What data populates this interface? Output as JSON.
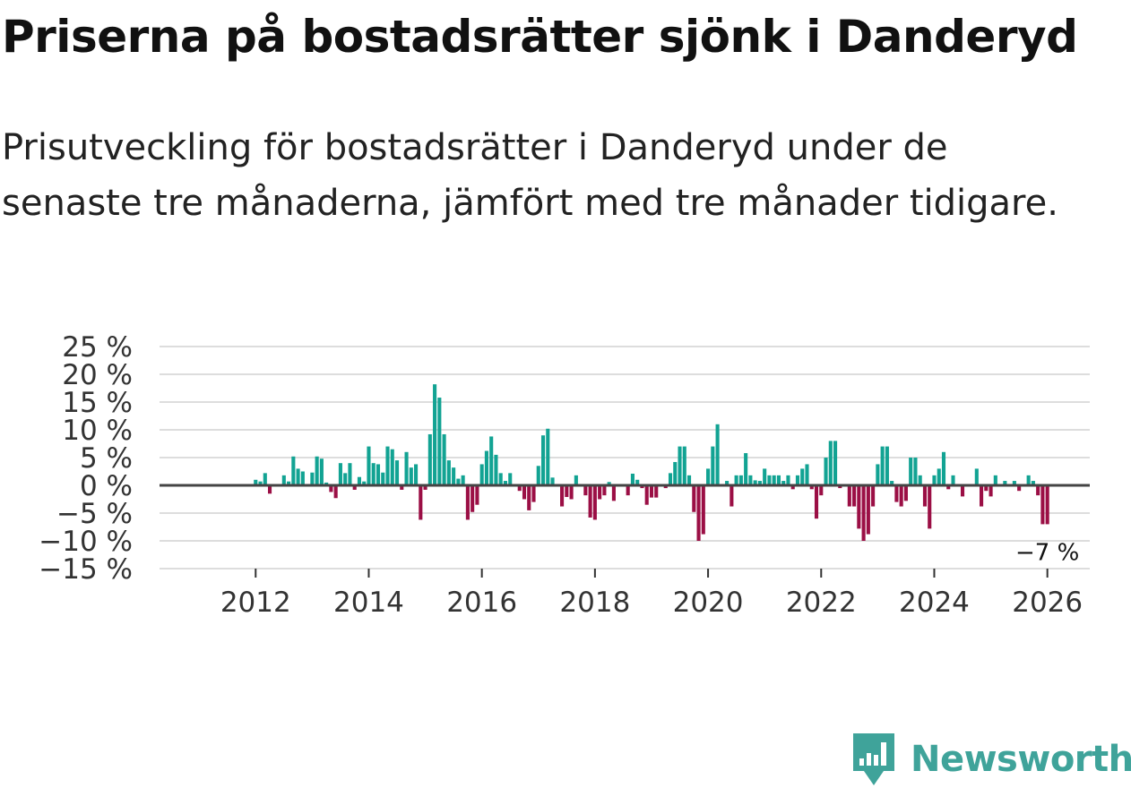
{
  "title": "Priserna på bostadsrätter sjönk i Danderyd",
  "subtitle": "Prisutveckling för bostadsrätter i Danderyd under de senaste tre månaderna, jämfört med tre månader tidigare.",
  "logo": {
    "text": "Newsworthy",
    "icon": "newsworthy-logo-icon",
    "color": "#3fa39a"
  },
  "colors": {
    "positive": "#12a393",
    "negative": "#9b0f45",
    "grid": "#dddddd",
    "zero": "#444444"
  },
  "chart_data": {
    "type": "bar",
    "title": "Priserna på bostadsrätter sjönk i Danderyd",
    "ylabel": "",
    "xlabel": "",
    "ylim": [
      -15,
      25
    ],
    "xlim": [
      2010.3,
      2026.75
    ],
    "y_ticks": [
      25,
      20,
      15,
      10,
      5,
      0,
      -5,
      -10,
      -15
    ],
    "y_tick_labels": [
      "25 %",
      "20 %",
      "15 %",
      "10 %",
      "5 %",
      "0 %",
      "−5 %",
      "−10 %",
      "−15 %"
    ],
    "x_ticks": [
      2012,
      2014,
      2016,
      2018,
      2020,
      2022,
      2024,
      2026
    ],
    "x_tick_labels": [
      "2012",
      "2014",
      "2016",
      "2018",
      "2020",
      "2022",
      "2024",
      "2026"
    ],
    "start": "2011-01",
    "frequency": "monthly",
    "values": [
      0,
      0,
      0,
      0,
      0,
      0,
      0,
      0,
      0,
      0,
      0,
      0,
      1,
      0.7,
      2.2,
      -1.5,
      0,
      0,
      1.8,
      0.7,
      5.2,
      3,
      2.5,
      0,
      2.3,
      5.2,
      4.8,
      0.5,
      -1.2,
      -2.3,
      4,
      2.2,
      4,
      -0.8,
      1.5,
      0.7,
      7,
      4,
      3.8,
      2.3,
      7,
      6.5,
      4.5,
      -0.8,
      6,
      3.2,
      3.8,
      -6.2,
      -0.8,
      9.2,
      18.2,
      15.8,
      9.2,
      4.5,
      3.2,
      1.2,
      1.8,
      -6.2,
      -4.8,
      -3.5,
      3.8,
      6.2,
      8.8,
      5.5,
      2.2,
      0.8,
      2.2,
      0,
      -1,
      -2.5,
      -4.5,
      -3,
      3.5,
      9,
      10.2,
      1.4,
      0,
      -3.8,
      -2.1,
      -2.5,
      1.8,
      0,
      -1.8,
      -5.8,
      -6.2,
      -2.5,
      -1.8,
      0.6,
      -2.8,
      0,
      0,
      -1.8,
      2.1,
      1,
      -0.5,
      -3.5,
      -2.2,
      -2.2,
      0,
      -0.5,
      2.2,
      4.2,
      7,
      7,
      1.8,
      -4.8,
      -10,
      -8.8,
      3,
      7,
      11,
      0,
      0.8,
      -3.8,
      1.8,
      1.8,
      5.8,
      1.8,
      0.9,
      0.8,
      3,
      1.8,
      1.8,
      1.8,
      0.8,
      1.8,
      -0.7,
      1.8,
      3,
      3.8,
      -0.7,
      -6,
      -1.8,
      5,
      8,
      8,
      -0.5,
      0,
      -3.8,
      -3.8,
      -7.8,
      -10,
      -8.8,
      -3.8,
      3.8,
      7,
      7,
      0.8,
      -3,
      -3.8,
      -2.8,
      5,
      5,
      1.8,
      -3.8,
      -7.8,
      1.8,
      3,
      6,
      -0.7,
      1.8,
      0,
      -2,
      0,
      0,
      3,
      -3.8,
      -1,
      -2,
      1.8,
      0,
      0.8,
      0,
      0.8,
      -1,
      0,
      1.8,
      0.8,
      -1.8,
      -7,
      -7
    ],
    "last_value_label": "−7 %"
  }
}
